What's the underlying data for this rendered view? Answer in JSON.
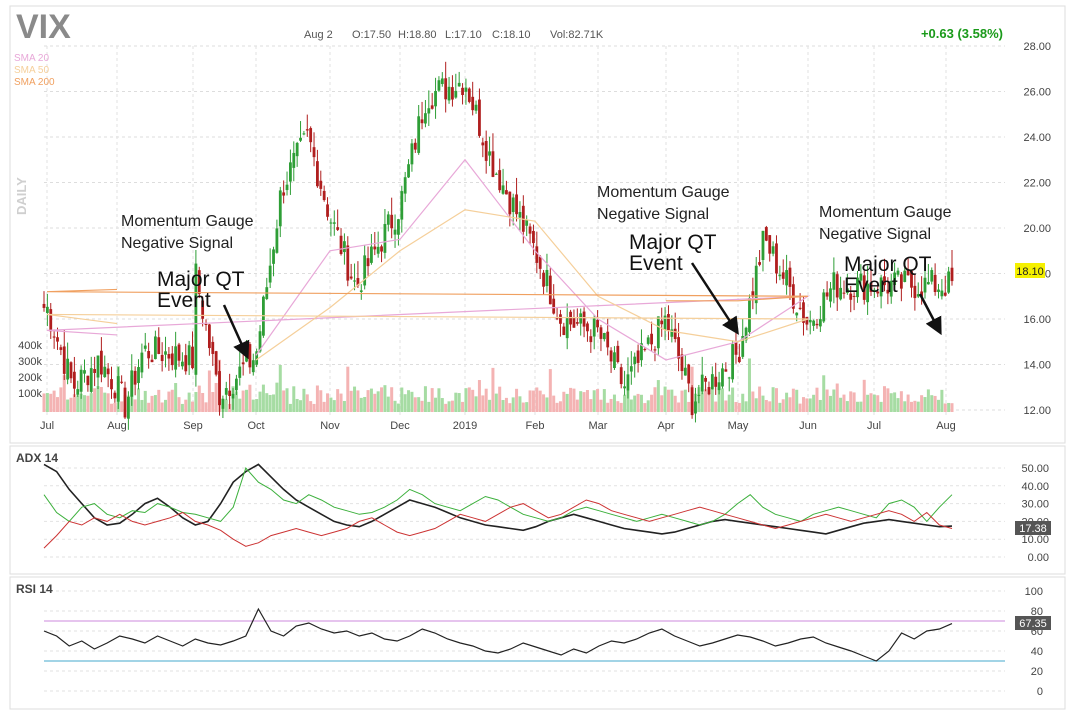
{
  "header": {
    "symbol": "VIX",
    "date": "Aug 2",
    "open": "O:17.50",
    "high": "H:18.80",
    "low": "L:17.10",
    "close": "C:18.10",
    "volume": "Vol:82.71K",
    "change": "+0.63 (3.58%)",
    "period": "DAILY"
  },
  "legend": [
    {
      "label": "SMA 20",
      "color": "#e8a8d8"
    },
    {
      "label": "SMA 50",
      "color": "#f5cf9a"
    },
    {
      "label": "SMA 200",
      "color": "#f0a060"
    }
  ],
  "colors": {
    "up": "#2e9e36",
    "down": "#b01e1e",
    "vol_up": "#a6dca3",
    "vol_down": "#f4b3b3",
    "change": "#1a9a1a",
    "price_badge": "#f5f000",
    "rsi_line": "#cc88dd",
    "rsi_low": "#44aacc"
  },
  "price_axis_ticks": [
    "28.00",
    "26.00",
    "24.00",
    "22.00",
    "20.00",
    "18.00",
    "16.00",
    "14.00",
    "12.00"
  ],
  "volume_ticks": [
    "400k",
    "300k",
    "200k",
    "100k"
  ],
  "x_ticks": [
    "Jul",
    "Aug",
    "Sep",
    "Oct",
    "Nov",
    "Dec",
    "2019",
    "Feb",
    "Mar",
    "Apr",
    "May",
    "Jun",
    "Jul",
    "Aug"
  ],
  "last_price": "18.10",
  "annotations": {
    "gauge1_l1": "Momentum Gauge",
    "gauge1_l2": "Negative Signal",
    "qt1_l1": "Major QT",
    "qt1_l2": "Event",
    "gauge2_l1": "Momentum Gauge",
    "gauge2_l2": "Negative Signal",
    "qt2_l1": "Major QT",
    "qt2_l2": "Event",
    "gauge3_l1": "Momentum Gauge",
    "gauge3_l2": "Negative Signal",
    "qt3_l1": "Major QT",
    "qt3_l2": "Event"
  },
  "adx": {
    "title": "ADX 14",
    "ticks": [
      "50.00",
      "40.00",
      "30.00",
      "20.00",
      "10.00",
      "0.00"
    ],
    "last": "17.38",
    "colors": {
      "adx": "#222222",
      "plus_di": "#3cb03c",
      "minus_di": "#cc3333"
    }
  },
  "rsi": {
    "title": "RSI 14",
    "ticks": [
      "100",
      "80",
      "60",
      "40",
      "20",
      "0"
    ],
    "last": "67.35"
  },
  "chart_data": [
    {
      "type": "candlestick",
      "title": "VIX",
      "ylim": [
        12,
        28
      ],
      "x_labels": [
        "Jul",
        "Aug",
        "Sep",
        "Oct",
        "Nov",
        "Dec",
        "2019",
        "Feb",
        "Mar",
        "Apr",
        "May",
        "Jun",
        "Jul",
        "Aug"
      ],
      "close_path": [
        {
          "x": "Jul",
          "y": 16.5
        },
        {
          "x": "Jul",
          "y": 13.0
        },
        {
          "x": "Aug",
          "y": 13.0
        },
        {
          "x": "Aug",
          "y": 14.6
        },
        {
          "x": "Sep",
          "y": 14.2
        },
        {
          "x": "Sep",
          "y": 12.7
        },
        {
          "x": "Oct",
          "y": 14.4
        },
        {
          "x": "Oct",
          "y": 21.8
        },
        {
          "x": "Oct",
          "y": 24.0
        },
        {
          "x": "Nov",
          "y": 20.5
        },
        {
          "x": "Nov",
          "y": 17.4
        },
        {
          "x": "Dec",
          "y": 21.0
        },
        {
          "x": "Dec",
          "y": 25.8
        },
        {
          "x": "2019",
          "y": 26.5
        },
        {
          "x": "2019",
          "y": 23.0
        },
        {
          "x": "Feb",
          "y": 19.0
        },
        {
          "x": "Feb",
          "y": 16.0
        },
        {
          "x": "Mar",
          "y": 15.4
        },
        {
          "x": "Mar",
          "y": 13.0
        },
        {
          "x": "Apr",
          "y": 16.0
        },
        {
          "x": "Apr",
          "y": 12.4
        },
        {
          "x": "May",
          "y": 14.5
        },
        {
          "x": "May",
          "y": 19.5
        },
        {
          "x": "Jun",
          "y": 15.8
        },
        {
          "x": "Jun",
          "y": 17.5
        },
        {
          "x": "Jul",
          "y": 14.2
        },
        {
          "x": "Jul",
          "y": 12.2
        },
        {
          "x": "Aug",
          "y": 14.5
        },
        {
          "x": "Aug",
          "y": 18.1
        }
      ],
      "sma20_path": [
        {
          "x": "Oct",
          "y": 14.4
        },
        {
          "x": "Nov",
          "y": 19.0
        },
        {
          "x": "Dec",
          "y": 19.5
        },
        {
          "x": "2019",
          "y": 23.0
        },
        {
          "x": "Feb",
          "y": 19.0
        },
        {
          "x": "Mar",
          "y": 16.0
        },
        {
          "x": "Apr",
          "y": 14.2
        },
        {
          "x": "May",
          "y": 15.0
        },
        {
          "x": "Jun",
          "y": 17.0
        },
        {
          "x": "Jul",
          "y": 15.5
        },
        {
          "x": "Aug",
          "y": 15.3
        }
      ],
      "sma50_path": [
        {
          "x": "Oct",
          "y": 14.2
        },
        {
          "x": "Nov",
          "y": 16.5
        },
        {
          "x": "Dec",
          "y": 19.0
        },
        {
          "x": "2019",
          "y": 20.8
        },
        {
          "x": "Feb",
          "y": 20.3
        },
        {
          "x": "Mar",
          "y": 17.0
        },
        {
          "x": "Apr",
          "y": 15.5
        },
        {
          "x": "May",
          "y": 15.0
        },
        {
          "x": "Jun",
          "y": 16.0
        },
        {
          "x": "Jul",
          "y": 16.2
        },
        {
          "x": "Aug",
          "y": 15.8
        }
      ],
      "sma200_path": [
        {
          "x": "Apr",
          "y": 16.8
        },
        {
          "x": "May",
          "y": 16.8
        },
        {
          "x": "Jun",
          "y": 17.0
        },
        {
          "x": "Jul",
          "y": 17.2
        },
        {
          "x": "Aug",
          "y": 17.3
        }
      ],
      "last": 18.1
    },
    {
      "type": "line",
      "title": "ADX 14",
      "ylim": [
        0,
        55
      ],
      "series": [
        {
          "values": [
            52,
            48,
            38,
            30,
            22,
            18,
            19,
            24,
            30,
            33,
            28,
            22,
            18,
            20,
            30,
            42,
            48,
            52,
            45,
            38,
            32,
            28,
            24,
            20,
            18,
            17,
            20,
            24,
            28,
            32,
            30,
            28,
            25,
            22,
            20,
            18,
            17,
            16,
            15,
            17,
            20,
            22,
            24,
            22,
            20,
            18,
            16,
            15,
            14,
            13,
            14,
            16,
            18,
            20,
            21,
            20,
            19,
            18,
            17,
            16,
            15,
            14,
            13,
            15,
            17,
            19,
            20,
            21,
            20,
            19,
            18,
            17,
            17.38
          ]
        },
        {
          "values": [
            35,
            25,
            20,
            28,
            30,
            24,
            22,
            26,
            25,
            30,
            28,
            25,
            24,
            22,
            20,
            28,
            50,
            42,
            38,
            32,
            30,
            35,
            32,
            28,
            26,
            24,
            25,
            28,
            32,
            38,
            35,
            30,
            28,
            26,
            30,
            34,
            32,
            28,
            24,
            22,
            20,
            22,
            26,
            28,
            26,
            24,
            22,
            20,
            22,
            24,
            22,
            20,
            18,
            20,
            24,
            30,
            35,
            28,
            24,
            22,
            20,
            24,
            26,
            28,
            26,
            24,
            22,
            30,
            32,
            28,
            20,
            28,
            35
          ]
        },
        {
          "values": [
            5,
            12,
            20,
            18,
            22,
            20,
            24,
            20,
            18,
            20,
            22,
            25,
            20,
            18,
            15,
            10,
            6,
            8,
            12,
            14,
            16,
            14,
            12,
            14,
            16,
            20,
            22,
            18,
            14,
            12,
            14,
            16,
            20,
            24,
            22,
            20,
            24,
            28,
            30,
            26,
            22,
            24,
            28,
            32,
            30,
            26,
            24,
            22,
            20,
            22,
            24,
            26,
            28,
            26,
            24,
            22,
            20,
            18,
            16,
            18,
            20,
            22,
            24,
            22,
            20,
            22,
            24,
            26,
            24,
            20,
            25,
            18,
            16
          ]
        }
      ]
    },
    {
      "type": "line",
      "title": "RSI 14",
      "ylim": [
        0,
        100
      ],
      "series": [
        {
          "values": [
            60,
            55,
            45,
            50,
            42,
            48,
            55,
            52,
            48,
            55,
            50,
            45,
            52,
            48,
            46,
            50,
            55,
            82,
            60,
            55,
            65,
            68,
            62,
            58,
            60,
            55,
            58,
            52,
            50,
            55,
            62,
            58,
            52,
            48,
            45,
            40,
            38,
            42,
            48,
            44,
            40,
            36,
            42,
            38,
            45,
            50,
            48,
            52,
            58,
            62,
            55,
            50,
            45,
            48,
            52,
            56,
            54,
            50,
            45,
            48,
            52,
            54,
            48,
            44,
            40,
            35,
            30,
            40,
            58,
            52,
            60,
            62,
            67.35
          ]
        }
      ]
    }
  ]
}
